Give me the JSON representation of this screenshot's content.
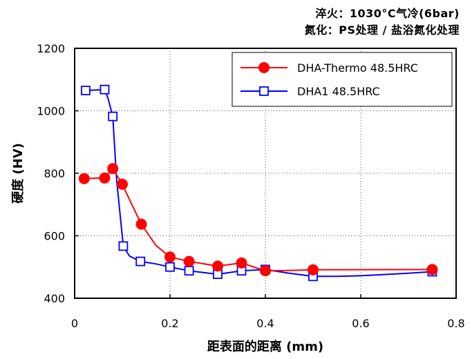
{
  "chart_data": {
    "type": "line",
    "notes": [
      "淬火：1030°C气冷(6bar)",
      "氮化：PS处理 / 盐浴氮化处理"
    ],
    "xlabel": "距表面的距离 (mm)",
    "ylabel": "硬度 (HV)",
    "xlim": [
      0,
      0.8
    ],
    "ylim": [
      400,
      1200
    ],
    "xticks": [
      "0",
      "0.2",
      "0.4",
      "0.6",
      "0.8"
    ],
    "yticks": [
      "400",
      "600",
      "800",
      "1000",
      "1200"
    ],
    "grid": true,
    "legend_position": "top-right",
    "series": [
      {
        "name": "DHA-Thermo  48.5HRC",
        "color": "#ff0000",
        "marker": "filled-circle",
        "x": [
          0.02,
          0.063,
          0.08,
          0.1,
          0.14,
          0.2,
          0.24,
          0.3,
          0.35,
          0.4,
          0.5,
          0.75
        ],
        "y": [
          783,
          785,
          815,
          765,
          637,
          532,
          518,
          503,
          513,
          488,
          491,
          492
        ],
        "curve": [
          [
            0.02,
            783
          ],
          [
            0.063,
            785
          ],
          [
            0.08,
            815
          ],
          [
            0.1,
            765
          ],
          [
            0.12,
            700
          ],
          [
            0.14,
            637
          ],
          [
            0.17,
            570
          ],
          [
            0.2,
            532
          ],
          [
            0.24,
            518
          ],
          [
            0.3,
            503
          ],
          [
            0.35,
            513
          ],
          [
            0.4,
            488
          ],
          [
            0.45,
            489
          ],
          [
            0.5,
            491
          ],
          [
            0.75,
            492
          ]
        ]
      },
      {
        "name": "DHA1  48.5HRC",
        "color": "#0000ff",
        "marker": "open-square",
        "x": [
          0.023,
          0.063,
          0.08,
          0.102,
          0.138,
          0.2,
          0.24,
          0.3,
          0.35,
          0.4,
          0.5,
          0.75
        ],
        "y": [
          1065,
          1068,
          982,
          567,
          518,
          500,
          488,
          477,
          488,
          492,
          470,
          485
        ],
        "curve": [
          [
            0.023,
            1065
          ],
          [
            0.063,
            1068
          ],
          [
            0.07,
            1040
          ],
          [
            0.08,
            982
          ],
          [
            0.088,
            780
          ],
          [
            0.102,
            567
          ],
          [
            0.115,
            535
          ],
          [
            0.138,
            518
          ],
          [
            0.17,
            510
          ],
          [
            0.2,
            500
          ],
          [
            0.24,
            488
          ],
          [
            0.3,
            477
          ],
          [
            0.35,
            488
          ],
          [
            0.4,
            492
          ],
          [
            0.45,
            480
          ],
          [
            0.5,
            470
          ],
          [
            0.55,
            470
          ],
          [
            0.6,
            472
          ],
          [
            0.65,
            476
          ],
          [
            0.7,
            480
          ],
          [
            0.75,
            485
          ]
        ]
      }
    ]
  }
}
